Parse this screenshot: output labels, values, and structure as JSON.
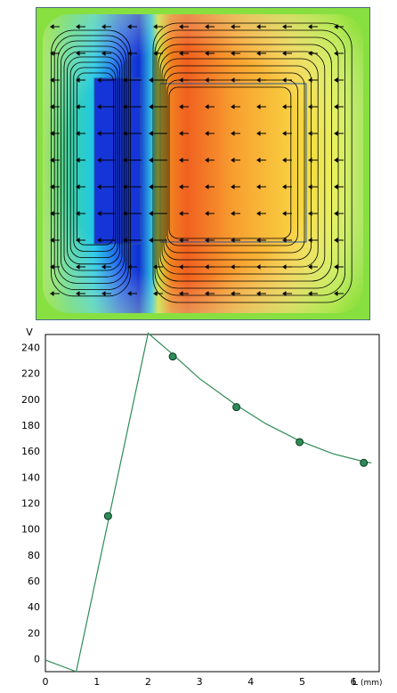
{
  "field_map": {
    "colors": {
      "frame": "#4a6a8a",
      "background": "#88e040",
      "arrow": "#000000",
      "contour": "#000000",
      "electrode_outline": "#2a5aa0"
    }
  },
  "chart_data": {
    "type": "line",
    "xlabel": "L",
    "xlabel_unit": "(mm)",
    "ylabel": "V",
    "xlim": [
      0,
      6.5
    ],
    "ylim": [
      -10,
      250
    ],
    "x_ticks": [
      0,
      1,
      2,
      3,
      4,
      5,
      6
    ],
    "y_ticks": [
      0,
      20,
      40,
      60,
      80,
      100,
      120,
      140,
      160,
      180,
      200,
      220,
      240
    ],
    "grid": true,
    "grid_style": "dashed",
    "line_color": "#2e8b57",
    "marker_color": "#2e8b57",
    "series": [
      {
        "style": "line",
        "x": [
          0,
          0.6,
          2.0,
          2.5,
          3.0,
          3.7,
          4.3,
          4.95,
          5.6,
          6.2,
          6.35
        ],
        "y": [
          -1,
          -10,
          251,
          234,
          216,
          196,
          181,
          168,
          158,
          152,
          151
        ]
      },
      {
        "style": "markers",
        "x": [
          1.22,
          2.48,
          3.72,
          4.95,
          6.2
        ],
        "y": [
          110,
          233,
          194,
          167,
          151
        ]
      }
    ]
  }
}
